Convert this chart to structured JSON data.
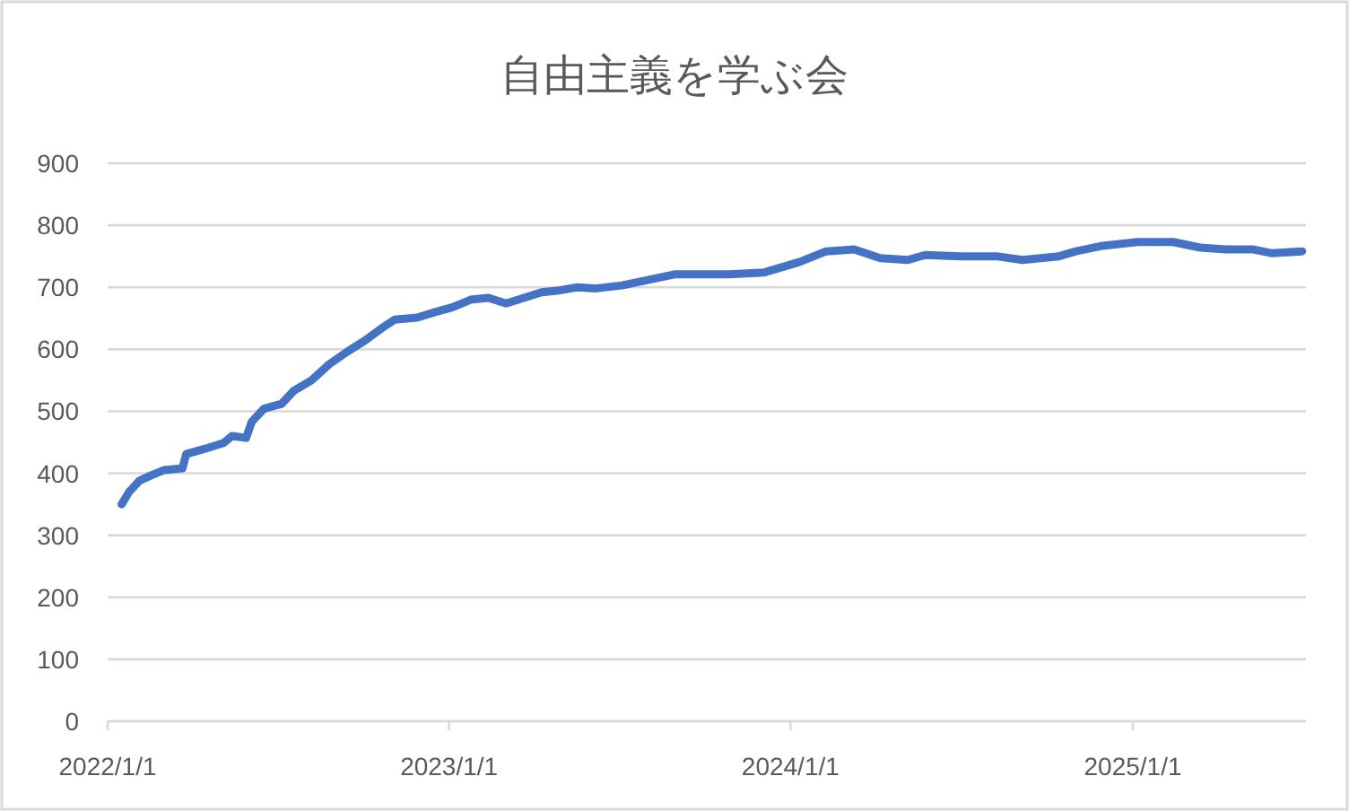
{
  "chart_data": {
    "type": "line",
    "title": "自由主義を学ぶ会",
    "x": [
      "2022-01-16",
      "2022-01-24",
      "2022-02-04",
      "2022-02-17",
      "2022-03-02",
      "2022-03-22",
      "2022-03-26",
      "2022-04-16",
      "2022-05-05",
      "2022-05-14",
      "2022-05-29",
      "2022-06-04",
      "2022-06-17",
      "2022-07-06",
      "2022-07-19",
      "2022-08-07",
      "2022-08-26",
      "2022-09-14",
      "2022-10-03",
      "2022-10-21",
      "2022-11-04",
      "2022-11-28",
      "2022-12-17",
      "2023-01-05",
      "2023-01-24",
      "2023-02-12",
      "2023-03-03",
      "2023-03-22",
      "2023-04-10",
      "2023-04-29",
      "2023-05-18",
      "2023-06-06",
      "2023-07-05",
      "2023-08-31",
      "2023-10-27",
      "2023-12-04",
      "2024-01-11",
      "2024-02-08",
      "2024-03-09",
      "2024-04-06",
      "2024-05-05",
      "2024-05-24",
      "2024-07-01",
      "2024-08-08",
      "2024-09-05",
      "2024-10-14",
      "2024-11-01",
      "2024-11-30",
      "2025-01-06",
      "2025-02-13",
      "2025-03-14",
      "2025-04-11",
      "2025-05-10",
      "2025-05-29",
      "2025-07-01"
    ],
    "series": [
      {
        "color": "#4472c4",
        "values": [
          350,
          370,
          388,
          397,
          405,
          408,
          431,
          440,
          449,
          460,
          457,
          483,
          504,
          512,
          533,
          550,
          576,
          596,
          614,
          634,
          648,
          651,
          660,
          668,
          680,
          683,
          674,
          683,
          692,
          695,
          700,
          698,
          703,
          721,
          721,
          724,
          741,
          758,
          761,
          747,
          744,
          752,
          750,
          750,
          744,
          750,
          758,
          767,
          773,
          773,
          764,
          761,
          761,
          755,
          758
        ]
      }
    ],
    "xlim": [
      "2022-01-01",
      "2025-07-05"
    ],
    "xticks": [
      {
        "value": "2022-01-01",
        "label": "2022/1/1"
      },
      {
        "value": "2023-01-01",
        "label": "2023/1/1"
      },
      {
        "value": "2024-01-01",
        "label": "2024/1/1"
      },
      {
        "value": "2025-01-01",
        "label": "2025/1/1"
      }
    ],
    "ylim": [
      0,
      900
    ],
    "yticks": [
      0,
      100,
      200,
      300,
      400,
      500,
      600,
      700,
      800,
      900
    ],
    "grid": "y",
    "marker": "none",
    "line_style": "solid"
  }
}
